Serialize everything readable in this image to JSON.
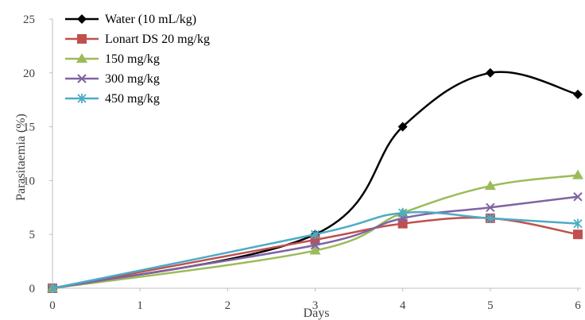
{
  "chart_data": {
    "type": "line",
    "title": "",
    "xlabel": "Days",
    "ylabel": "Parasitaemia (%)",
    "x": [
      0,
      1,
      2,
      3,
      4,
      5,
      6
    ],
    "xlim": [
      0,
      6
    ],
    "ylim": [
      0,
      25
    ],
    "x_ticks": [
      "0",
      "1",
      "2",
      "3",
      "4",
      "5",
      "6"
    ],
    "y_ticks": [
      "0",
      "5",
      "10",
      "15",
      "20",
      "25"
    ],
    "grid": false,
    "legend_position": "top-left",
    "series": [
      {
        "name": "Water (10 mL/kg)",
        "color": "#000000",
        "marker": "diamond",
        "points": [
          [
            0,
            0
          ],
          [
            3,
            5
          ],
          [
            4,
            15
          ],
          [
            5,
            20
          ],
          [
            6,
            18
          ]
        ]
      },
      {
        "name": "Lonart DS 20 mg/kg",
        "color": "#C0504D",
        "marker": "square",
        "points": [
          [
            0,
            0
          ],
          [
            3,
            4.5
          ],
          [
            4,
            6
          ],
          [
            5,
            6.5
          ],
          [
            6,
            5
          ]
        ]
      },
      {
        "name": "150 mg/kg",
        "color": "#9BBB59",
        "marker": "triangle",
        "points": [
          [
            0,
            0
          ],
          [
            3,
            3.5
          ],
          [
            4,
            7
          ],
          [
            5,
            9.5
          ],
          [
            6,
            10.5
          ]
        ]
      },
      {
        "name": "300 mg/kg",
        "color": "#8064A2",
        "marker": "x",
        "points": [
          [
            0,
            0
          ],
          [
            3,
            4
          ],
          [
            4,
            6.5
          ],
          [
            5,
            7.5
          ],
          [
            6,
            8.5
          ]
        ]
      },
      {
        "name": "450 mg/kg",
        "color": "#4BACC6",
        "marker": "star",
        "points": [
          [
            0,
            0
          ],
          [
            3,
            5
          ],
          [
            4,
            7
          ],
          [
            5,
            6.5
          ],
          [
            6,
            6
          ]
        ]
      }
    ]
  }
}
